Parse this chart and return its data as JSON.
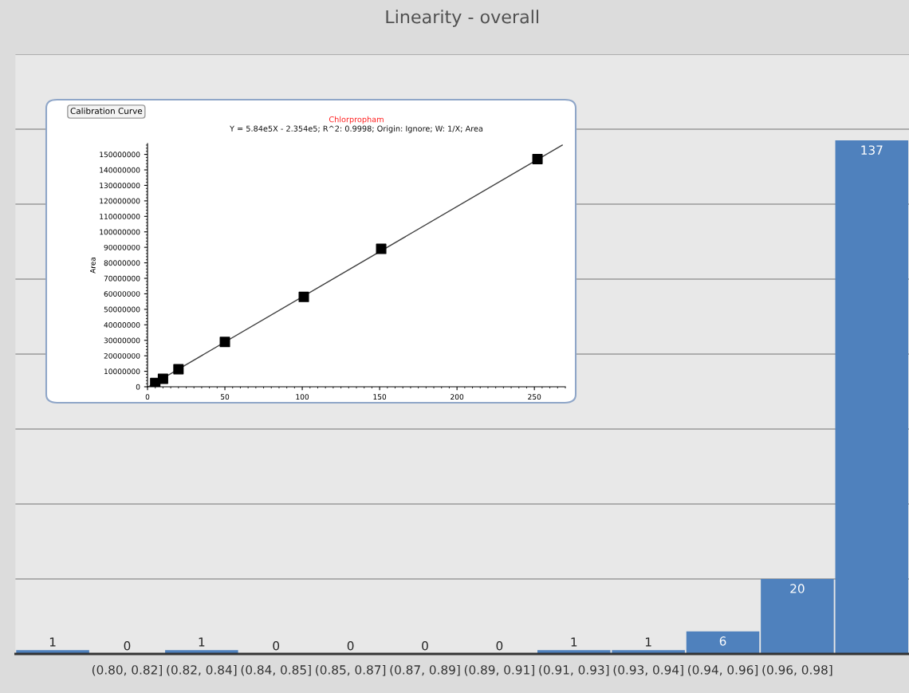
{
  "chart_data": [
    {
      "type": "bar",
      "title": "Linearity - overall",
      "categories": [
        null,
        "(0.80, 0.82]",
        "(0.82, 0.84]",
        "(0.84, 0.85]",
        "(0.85, 0.87]",
        "(0.87, 0.89]",
        "(0.89, 0.91]",
        "(0.91, 0.93]",
        "(0.93, 0.94]",
        "(0.94, 0.96]",
        "(0.96, 0.98]",
        null
      ],
      "values": [
        1,
        0,
        1,
        0,
        0,
        0,
        0,
        1,
        1,
        6,
        20,
        137
      ],
      "color": "#4f81bd",
      "data_labels": true,
      "ylim": [
        0,
        160
      ],
      "yticks": [
        {
          "value": 0,
          "label": null
        },
        {
          "value": 20,
          "label": null
        },
        {
          "value": 40,
          "label": null
        },
        {
          "value": 60,
          "label": null
        },
        {
          "value": 80,
          "label": null
        },
        {
          "value": 100,
          "label": null
        },
        {
          "value": 120,
          "label": null
        },
        {
          "value": 140,
          "label": null
        },
        {
          "value": 160,
          "label": null
        }
      ],
      "grid": "y",
      "tick_labels": "x"
    },
    {
      "type": "scatter",
      "title": "Chlorpropham",
      "subtitle": "Y = 5.84e5X - 2.354e5; R^2: 0.9998; Origin: Ignore; W: 1/X; Area",
      "ylabel": "Area",
      "annotations": [
        "Calibration Curve"
      ],
      "series": [
        {
          "type": "scatter",
          "color": "#000000",
          "marker": "square",
          "x": [
            5,
            10,
            20,
            50,
            101,
            151,
            252
          ],
          "values": [
            2500000,
            5200000,
            11300000,
            28900000,
            58000000,
            89000000,
            147000000
          ]
        },
        {
          "type": "line",
          "color": "#404040",
          "line_style": "solid",
          "x": [
            0.5,
            268
          ],
          "values": [
            0,
            156000000
          ]
        }
      ],
      "xlim": [
        0,
        270
      ],
      "xticks": [
        0,
        50,
        100,
        150,
        200,
        250
      ],
      "ylim": [
        0,
        157000000
      ],
      "yticks": [
        0,
        10000000,
        20000000,
        30000000,
        40000000,
        50000000,
        60000000,
        70000000,
        80000000,
        90000000,
        100000000,
        110000000,
        120000000,
        130000000,
        140000000,
        150000000
      ],
      "grid": false
    }
  ]
}
